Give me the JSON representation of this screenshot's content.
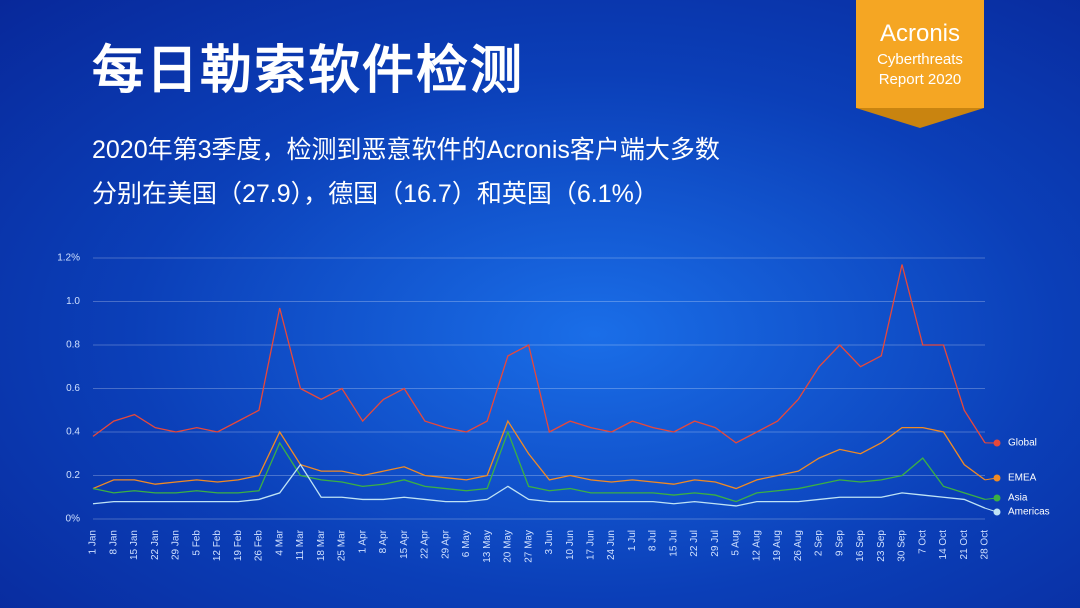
{
  "title": "每日勒索软件检测",
  "subtitle": [
    "2020年第3季度，检测到恶意软件的Acronis客户端大多数",
    "分别在美国（27.9），德国（16.7）和英国（6.1%）"
  ],
  "badge": [
    "Acronis",
    "Cyberthreats",
    "Report 2020"
  ],
  "chart_data": {
    "type": "line",
    "categories": [
      "1 Jan",
      "8 Jan",
      "15 Jan",
      "22 Jan",
      "29 Jan",
      "5 Feb",
      "12 Feb",
      "19 Feb",
      "26 Feb",
      "4 Mar",
      "11 Mar",
      "18 Mar",
      "25 Mar",
      "1 Apr",
      "8 Apr",
      "15 Apr",
      "22 Apr",
      "29 Apr",
      "6 May",
      "13 May",
      "20 May",
      "27 May",
      "3 Jun",
      "10 Jun",
      "17 Jun",
      "24 Jun",
      "1 Jul",
      "8 Jul",
      "15 Jul",
      "22 Jul",
      "29 Jul",
      "5 Aug",
      "12 Aug",
      "19 Aug",
      "26 Aug",
      "2 Sep",
      "9 Sep",
      "16 Sep",
      "23 Sep",
      "30 Sep",
      "7 Oct",
      "14 Oct",
      "21 Oct",
      "28 Oct"
    ],
    "series": [
      {
        "name": "Global",
        "color": "#e8483a",
        "values": [
          0.38,
          0.45,
          0.48,
          0.42,
          0.4,
          0.42,
          0.4,
          0.45,
          0.5,
          0.97,
          0.6,
          0.55,
          0.6,
          0.45,
          0.55,
          0.6,
          0.45,
          0.42,
          0.4,
          0.45,
          0.75,
          0.8,
          0.4,
          0.45,
          0.42,
          0.4,
          0.45,
          0.42,
          0.4,
          0.45,
          0.42,
          0.35,
          0.4,
          0.45,
          0.55,
          0.7,
          0.8,
          0.7,
          0.75,
          1.17,
          0.8,
          0.8,
          0.5,
          0.35
        ]
      },
      {
        "name": "EMEA",
        "color": "#f08a24",
        "values": [
          0.14,
          0.18,
          0.18,
          0.16,
          0.17,
          0.18,
          0.17,
          0.18,
          0.2,
          0.4,
          0.25,
          0.22,
          0.22,
          0.2,
          0.22,
          0.24,
          0.2,
          0.19,
          0.18,
          0.2,
          0.45,
          0.3,
          0.18,
          0.2,
          0.18,
          0.17,
          0.18,
          0.17,
          0.16,
          0.18,
          0.17,
          0.14,
          0.18,
          0.2,
          0.22,
          0.28,
          0.32,
          0.3,
          0.35,
          0.42,
          0.42,
          0.4,
          0.25,
          0.18
        ]
      },
      {
        "name": "Asia",
        "color": "#3cb043",
        "values": [
          0.14,
          0.12,
          0.13,
          0.12,
          0.12,
          0.13,
          0.12,
          0.12,
          0.13,
          0.35,
          0.2,
          0.18,
          0.17,
          0.15,
          0.16,
          0.18,
          0.15,
          0.14,
          0.13,
          0.14,
          0.4,
          0.15,
          0.13,
          0.14,
          0.12,
          0.12,
          0.12,
          0.12,
          0.11,
          0.12,
          0.11,
          0.08,
          0.12,
          0.13,
          0.14,
          0.16,
          0.18,
          0.17,
          0.18,
          0.2,
          0.28,
          0.15,
          0.12,
          0.09
        ]
      },
      {
        "name": "Americas",
        "color": "#bfe3f5",
        "values": [
          0.07,
          0.08,
          0.08,
          0.08,
          0.08,
          0.08,
          0.08,
          0.08,
          0.09,
          0.12,
          0.25,
          0.1,
          0.1,
          0.09,
          0.09,
          0.1,
          0.09,
          0.08,
          0.08,
          0.09,
          0.15,
          0.09,
          0.08,
          0.08,
          0.08,
          0.08,
          0.08,
          0.08,
          0.07,
          0.08,
          0.07,
          0.06,
          0.08,
          0.08,
          0.08,
          0.09,
          0.1,
          0.1,
          0.1,
          0.12,
          0.11,
          0.1,
          0.09,
          0.05
        ]
      }
    ],
    "ylim": [
      0,
      1.2
    ],
    "yticks": [
      {
        "value": 0,
        "label": "0%"
      },
      0.2,
      0.4,
      0.6,
      0.8,
      {
        "value": 1,
        "label": "1.0"
      },
      {
        "value": 1.2,
        "label": "1.2%"
      }
    ],
    "grid": true
  }
}
